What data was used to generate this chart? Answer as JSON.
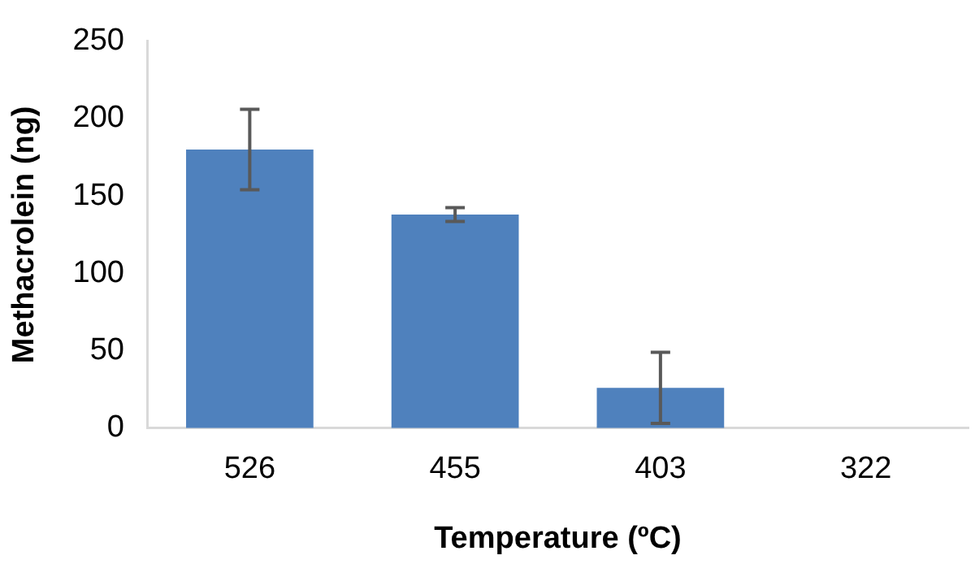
{
  "chart_data": {
    "type": "bar",
    "xlabel": "Temperature (ºC)",
    "ylabel": "Methacrolein (ng)",
    "categories": [
      "526",
      "455",
      "403",
      "322"
    ],
    "values": [
      180,
      138,
      26,
      0
    ],
    "errors": [
      26,
      4.5,
      23,
      null
    ],
    "color": "#4f81bd",
    "ylim": [
      0,
      250
    ],
    "yticks": [
      0,
      50,
      100,
      150,
      200,
      250
    ],
    "grid": false,
    "legend": false
  }
}
